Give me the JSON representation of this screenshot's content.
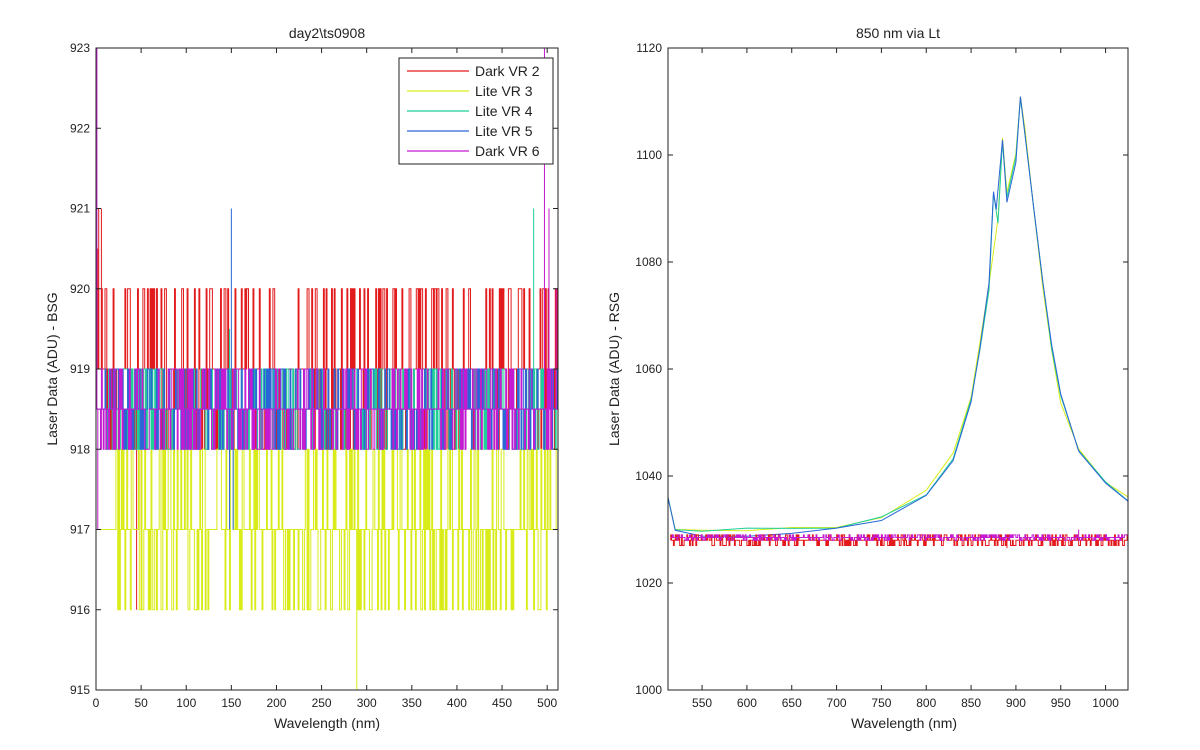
{
  "chart_data": [
    {
      "type": "line",
      "title": "day2\\ts0908",
      "xlabel": "Wavelength (nm)",
      "ylabel": "Laser Data (ADU) - BSG",
      "xlim": [
        0,
        512
      ],
      "ylim": [
        915,
        923
      ],
      "xticks": [
        0,
        50,
        100,
        150,
        200,
        250,
        300,
        350,
        400,
        450,
        500
      ],
      "yticks": [
        915,
        916,
        917,
        918,
        919,
        920,
        921,
        922,
        923
      ],
      "grid": false,
      "legend_position": "top-right",
      "series": [
        {
          "name": "Dark VR 2",
          "color": "#e31a1c",
          "baseline": 919,
          "toggle_values": [
            918,
            920
          ],
          "toggle_ranges": [
            [
              1,
              512
            ]
          ],
          "spikes": [
            {
              "x": 3,
              "y": 921
            },
            {
              "x": 6,
              "y": 921
            },
            {
              "x": 2,
              "y": 920.5
            },
            {
              "x": 35,
              "y": 917.5
            },
            {
              "x": 45,
              "y": 916
            },
            {
              "x": 50,
              "y": 917
            }
          ]
        },
        {
          "name": "Lite VR 3",
          "color": "#d9ec1a",
          "baseline": 917,
          "toggle_values": [
            916,
            918
          ],
          "toggle_ranges": [
            [
              20,
              290
            ],
            [
              290,
              512
            ]
          ],
          "spikes": [
            {
              "x": 289,
              "y": 915
            }
          ]
        },
        {
          "name": "Lite VR 4",
          "color": "#1fcf9a",
          "baseline": 918.5,
          "toggle_values": [
            918,
            919
          ],
          "toggle_ranges": [
            [
              10,
              512
            ]
          ],
          "spikes": [
            {
              "x": 148,
              "y": 919.5
            },
            {
              "x": 485,
              "y": 921
            }
          ]
        },
        {
          "name": "Lite VR 5",
          "color": "#2a66d6",
          "baseline": 918.5,
          "toggle_values": [
            918,
            919
          ],
          "toggle_ranges": [
            [
              10,
              512
            ]
          ],
          "spikes": [
            {
              "x": 150,
              "y": 921
            },
            {
              "x": 152,
              "y": 917
            },
            {
              "x": 148,
              "y": 917
            }
          ]
        },
        {
          "name": "Dark VR 6",
          "color": "#c41ad1",
          "baseline": 918.5,
          "toggle_values": [
            918,
            919
          ],
          "toggle_ranges": [
            [
              1,
              512
            ]
          ],
          "spikes": [
            {
              "x": 1,
              "y": 923
            },
            {
              "x": 2,
              "y": 917
            },
            {
              "x": 497,
              "y": 923
            },
            {
              "x": 502,
              "y": 921
            },
            {
              "x": 510,
              "y": 920
            }
          ]
        }
      ]
    },
    {
      "type": "line",
      "title": "850 nm via Lt",
      "xlabel": "Wavelength (nm)",
      "ylabel": "Laser Data (ADU) - RSG",
      "xlim": [
        512,
        1025
      ],
      "ylim": [
        1000,
        1120
      ],
      "xticks": [
        550,
        600,
        650,
        700,
        750,
        800,
        850,
        900,
        950,
        1000
      ],
      "yticks": [
        1000,
        1020,
        1040,
        1060,
        1080,
        1100,
        1120
      ],
      "grid": false,
      "series": [
        {
          "name": "Lite VR 3",
          "color": "#d9ec1a",
          "points": [
            [
              512,
              1036
            ],
            [
              520,
              1030
            ],
            [
              550,
              1029.5
            ],
            [
              600,
              1029.5
            ],
            [
              650,
              1030
            ],
            [
              700,
              1030.5
            ],
            [
              750,
              1032.5
            ],
            [
              800,
              1037
            ],
            [
              830,
              1044
            ],
            [
              850,
              1055
            ],
            [
              860,
              1065
            ],
            [
              870,
              1076
            ],
            [
              880,
              1088
            ],
            [
              885,
              1103
            ],
            [
              890,
              1093
            ],
            [
              900,
              1100
            ],
            [
              905,
              1111
            ],
            [
              910,
              1105
            ],
            [
              920,
              1090
            ],
            [
              930,
              1075
            ],
            [
              940,
              1063
            ],
            [
              950,
              1054
            ],
            [
              970,
              1045
            ],
            [
              1000,
              1039
            ],
            [
              1025,
              1036
            ]
          ]
        },
        {
          "name": "Lite VR 4",
          "color": "#1fcf9a",
          "points": [
            [
              512,
              1036
            ],
            [
              520,
              1030
            ],
            [
              550,
              1030
            ],
            [
              600,
              1030
            ],
            [
              650,
              1030
            ],
            [
              700,
              1030.5
            ],
            [
              750,
              1032
            ],
            [
              800,
              1036.5
            ],
            [
              830,
              1043.5
            ],
            [
              850,
              1054
            ],
            [
              860,
              1064
            ],
            [
              870,
              1075
            ],
            [
              875,
              1093
            ],
            [
              880,
              1087
            ],
            [
              885,
              1103
            ],
            [
              890,
              1092
            ],
            [
              900,
              1100
            ],
            [
              905,
              1111
            ],
            [
              910,
              1104
            ],
            [
              920,
              1090
            ],
            [
              930,
              1076
            ],
            [
              940,
              1064
            ],
            [
              950,
              1055
            ],
            [
              970,
              1045
            ],
            [
              1000,
              1039
            ],
            [
              1025,
              1035
            ]
          ]
        },
        {
          "name": "Lite VR 5",
          "color": "#2a66d6",
          "points": [
            [
              512,
              1036
            ],
            [
              520,
              1029.5
            ],
            [
              550,
              1029
            ],
            [
              600,
              1029
            ],
            [
              650,
              1029.5
            ],
            [
              700,
              1030
            ],
            [
              750,
              1032
            ],
            [
              800,
              1036
            ],
            [
              830,
              1043
            ],
            [
              850,
              1054
            ],
            [
              860,
              1064
            ],
            [
              870,
              1076
            ],
            [
              875,
              1093
            ],
            [
              878,
              1090
            ],
            [
              885,
              1103
            ],
            [
              890,
              1091
            ],
            [
              900,
              1099
            ],
            [
              905,
              1111
            ],
            [
              910,
              1104
            ],
            [
              920,
              1090
            ],
            [
              930,
              1076
            ],
            [
              940,
              1064
            ],
            [
              950,
              1055
            ],
            [
              970,
              1045
            ],
            [
              1000,
              1039
            ],
            [
              1025,
              1035
            ]
          ]
        },
        {
          "name": "Dark VR 2",
          "color": "#e31a1c",
          "baseline": 1028,
          "toggle_values": [
            1027,
            1029
          ],
          "toggle_ranges": [
            [
              515,
              1025
            ]
          ],
          "spikes": [
            {
              "x": 880,
              "y": 1027
            },
            {
              "x": 890,
              "y": 1026.5
            }
          ]
        },
        {
          "name": "Dark VR 6",
          "color": "#c41ad1",
          "baseline": 1028.5,
          "toggle_values": [
            1028,
            1029
          ],
          "toggle_ranges": [
            [
              515,
              1025
            ]
          ],
          "spikes": [
            {
              "x": 970,
              "y": 1030
            }
          ]
        }
      ]
    }
  ]
}
